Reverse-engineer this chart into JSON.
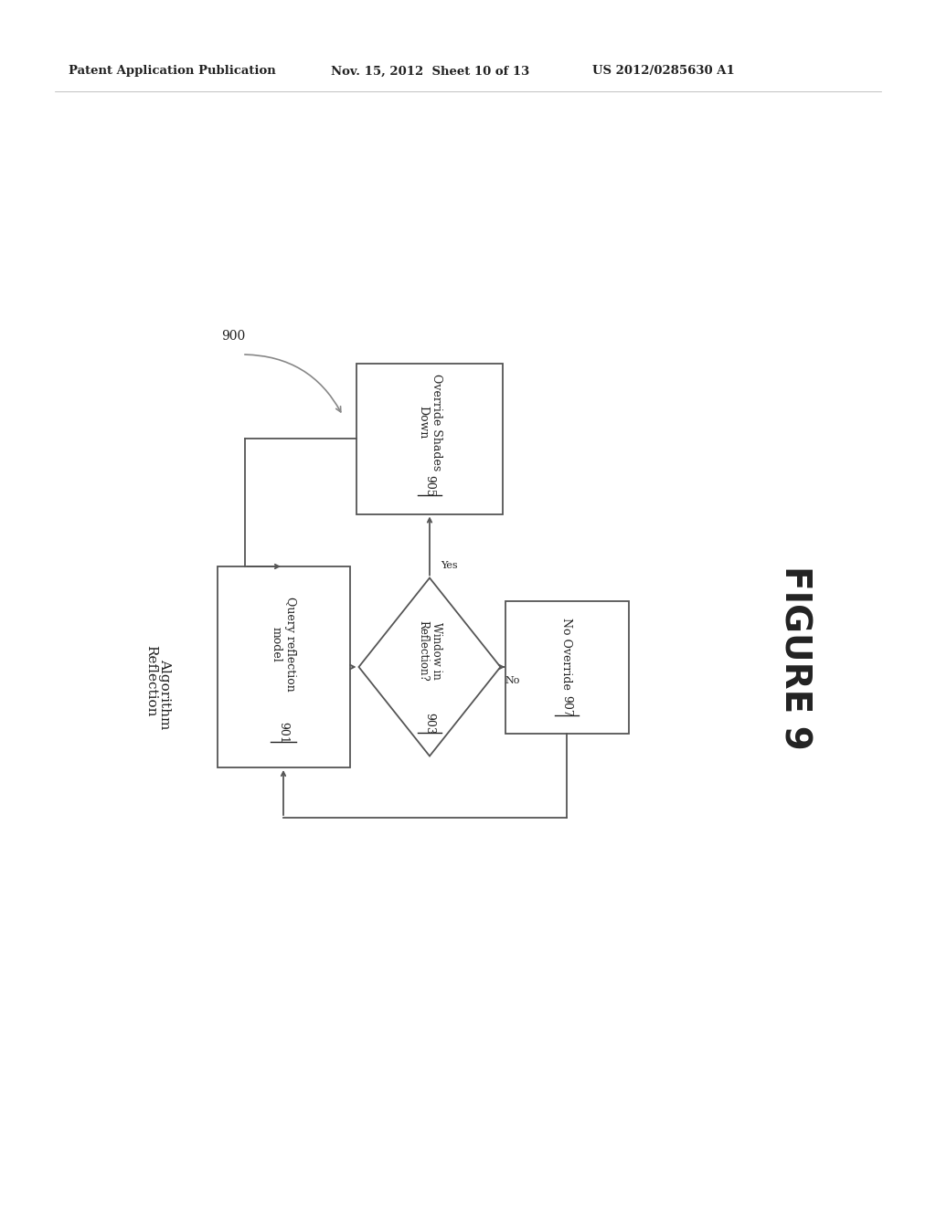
{
  "bg_color": "#ffffff",
  "header_left": "Patent Application Publication",
  "header_mid": "Nov. 15, 2012  Sheet 10 of 13",
  "header_right": "US 2012/0285630 A1",
  "figure_label": "FIGURE 9",
  "label_900": "900",
  "label_reflection_line1": "Reflection",
  "label_reflection_line2": "Algorithm",
  "box901_line1": "Query reflection",
  "box901_line2": "model",
  "box901_num": "901",
  "diamond903_line1": "Window in",
  "diamond903_line2": "Reflection?",
  "diamond903_num": "903",
  "box905_line1": "Override Shades",
  "box905_line2": "Down",
  "box905_num": "905",
  "box907_line1": "No Override",
  "box907_num": "907",
  "yes_label": "Yes",
  "no_label": "No",
  "line_color": "#555555",
  "text_color": "#222222",
  "header_fontsize": 9.5,
  "body_fontsize": 9,
  "figure_fontsize": 28,
  "reflection_fontsize": 11
}
